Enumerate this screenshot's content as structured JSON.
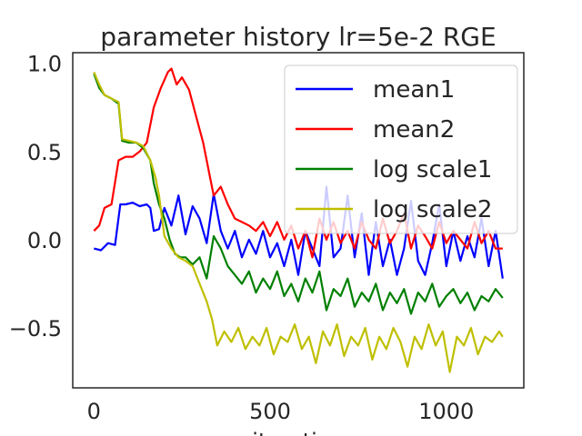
{
  "chart_data": {
    "type": "line",
    "title": "parameter history lr=5e-2 RGE",
    "xlabel": "iteration",
    "ylabel": "",
    "xlim": [
      -60,
      1220
    ],
    "ylim": [
      -0.84,
      1.06
    ],
    "xticks": [
      0,
      500,
      1000
    ],
    "yticks": [
      -0.5,
      0.0,
      0.5,
      1.0
    ],
    "xtick_labels": [
      "0",
      "500",
      "1000"
    ],
    "ytick_labels": [
      "−0.5",
      "0.0",
      "0.5",
      "1.0"
    ],
    "legend_position": "upper-right",
    "grid": false,
    "series": [
      {
        "name": "mean1",
        "color": "#0000ff",
        "x": [
          0,
          20,
          40,
          60,
          75,
          90,
          110,
          130,
          150,
          160,
          170,
          185,
          200,
          220,
          240,
          260,
          280,
          300,
          320,
          340,
          360,
          380,
          400,
          420,
          440,
          460,
          480,
          500,
          520,
          540,
          560,
          580,
          600,
          620,
          640,
          660,
          680,
          700,
          720,
          740,
          760,
          780,
          800,
          820,
          840,
          860,
          880,
          900,
          920,
          940,
          960,
          980,
          1000,
          1020,
          1040,
          1060,
          1080,
          1100,
          1120,
          1140,
          1160
        ],
        "y": [
          -0.05,
          -0.06,
          -0.02,
          -0.03,
          0.2,
          0.2,
          0.21,
          0.19,
          0.2,
          0.18,
          0.05,
          0.06,
          0.18,
          0.08,
          0.25,
          0.03,
          0.19,
          0.12,
          -0.02,
          0.26,
          0.05,
          -0.05,
          0.05,
          -0.1,
          0.0,
          -0.08,
          0.05,
          -0.1,
          -0.02,
          -0.15,
          0.0,
          -0.2,
          0.05,
          -0.05,
          -0.15,
          0.3,
          -0.1,
          -0.05,
          0.25,
          -0.1,
          0.15,
          -0.2,
          0.1,
          -0.15,
          0.0,
          -0.2,
          -0.05,
          0.22,
          -0.12,
          -0.2,
          -0.02,
          0.2,
          -0.15,
          0.05,
          -0.12,
          0.02,
          -0.1,
          0.12,
          -0.15,
          0.05,
          -0.22
        ]
      },
      {
        "name": "mean2",
        "color": "#ff0000",
        "x": [
          0,
          15,
          30,
          50,
          70,
          90,
          110,
          130,
          150,
          170,
          190,
          210,
          220,
          235,
          250,
          270,
          290,
          310,
          330,
          340,
          360,
          380,
          400,
          420,
          440,
          460,
          480,
          500,
          520,
          540,
          560,
          580,
          600,
          620,
          640,
          660,
          680,
          700,
          720,
          740,
          760,
          780,
          800,
          820,
          840,
          860,
          880,
          900,
          920,
          940,
          960,
          980,
          1000,
          1020,
          1040,
          1060,
          1080,
          1100,
          1120,
          1140,
          1160
        ],
        "y": [
          0.05,
          0.08,
          0.18,
          0.2,
          0.45,
          0.47,
          0.47,
          0.5,
          0.55,
          0.75,
          0.86,
          0.95,
          0.97,
          0.88,
          0.92,
          0.85,
          0.7,
          0.55,
          0.35,
          0.25,
          0.3,
          0.2,
          0.12,
          0.1,
          0.08,
          0.05,
          0.1,
          0.02,
          0.1,
          0.0,
          0.08,
          -0.05,
          0.05,
          -0.1,
          0.12,
          0.0,
          0.1,
          -0.02,
          0.05,
          -0.05,
          0.1,
          0.0,
          -0.05,
          0.12,
          -0.02,
          0.05,
          0.15,
          -0.05,
          0.08,
          0.02,
          -0.05,
          0.1,
          -0.02,
          0.05,
          0.0,
          -0.05,
          0.1,
          -0.02,
          0.05,
          -0.05,
          -0.05
        ]
      },
      {
        "name": "log scale1",
        "color": "#008000",
        "x": [
          0,
          15,
          30,
          50,
          70,
          80,
          100,
          120,
          140,
          160,
          170,
          185,
          200,
          215,
          230,
          245,
          260,
          280,
          300,
          320,
          340,
          360,
          380,
          400,
          420,
          440,
          460,
          480,
          500,
          520,
          540,
          560,
          580,
          600,
          620,
          640,
          660,
          680,
          700,
          720,
          740,
          760,
          780,
          800,
          820,
          840,
          860,
          880,
          900,
          920,
          940,
          960,
          980,
          1000,
          1020,
          1040,
          1060,
          1080,
          1100,
          1120,
          1140,
          1160
        ],
        "y": [
          0.94,
          0.86,
          0.82,
          0.8,
          0.77,
          0.56,
          0.55,
          0.55,
          0.52,
          0.45,
          0.32,
          0.2,
          0.12,
          0.0,
          -0.08,
          -0.1,
          -0.1,
          -0.14,
          -0.1,
          -0.22,
          0.02,
          -0.05,
          -0.15,
          -0.2,
          -0.25,
          -0.18,
          -0.3,
          -0.22,
          -0.28,
          -0.18,
          -0.32,
          -0.25,
          -0.35,
          -0.22,
          -0.3,
          -0.18,
          -0.4,
          -0.28,
          -0.32,
          -0.22,
          -0.38,
          -0.3,
          -0.35,
          -0.25,
          -0.4,
          -0.3,
          -0.36,
          -0.28,
          -0.42,
          -0.3,
          -0.35,
          -0.25,
          -0.38,
          -0.32,
          -0.28,
          -0.36,
          -0.3,
          -0.4,
          -0.32,
          -0.35,
          -0.28,
          -0.33
        ]
      },
      {
        "name": "log scale2",
        "color": "#bfbf00",
        "x": [
          0,
          15,
          30,
          50,
          70,
          80,
          100,
          120,
          140,
          160,
          175,
          185,
          200,
          220,
          240,
          260,
          280,
          300,
          320,
          335,
          350,
          370,
          390,
          410,
          430,
          450,
          470,
          490,
          510,
          530,
          550,
          570,
          590,
          610,
          630,
          650,
          670,
          690,
          710,
          730,
          750,
          770,
          790,
          810,
          830,
          850,
          870,
          890,
          910,
          930,
          950,
          970,
          990,
          1010,
          1030,
          1050,
          1070,
          1090,
          1110,
          1130,
          1150,
          1160
        ],
        "y": [
          0.95,
          0.88,
          0.82,
          0.8,
          0.78,
          0.57,
          0.56,
          0.55,
          0.53,
          0.45,
          0.35,
          0.25,
          0.02,
          -0.05,
          -0.1,
          -0.12,
          -0.15,
          -0.25,
          -0.35,
          -0.45,
          -0.6,
          -0.52,
          -0.58,
          -0.5,
          -0.62,
          -0.55,
          -0.6,
          -0.5,
          -0.65,
          -0.55,
          -0.58,
          -0.48,
          -0.62,
          -0.55,
          -0.7,
          -0.52,
          -0.6,
          -0.48,
          -0.66,
          -0.55,
          -0.6,
          -0.5,
          -0.68,
          -0.55,
          -0.62,
          -0.5,
          -0.58,
          -0.72,
          -0.55,
          -0.62,
          -0.48,
          -0.6,
          -0.52,
          -0.75,
          -0.55,
          -0.6,
          -0.5,
          -0.65,
          -0.55,
          -0.58,
          -0.52,
          -0.55
        ]
      }
    ]
  }
}
